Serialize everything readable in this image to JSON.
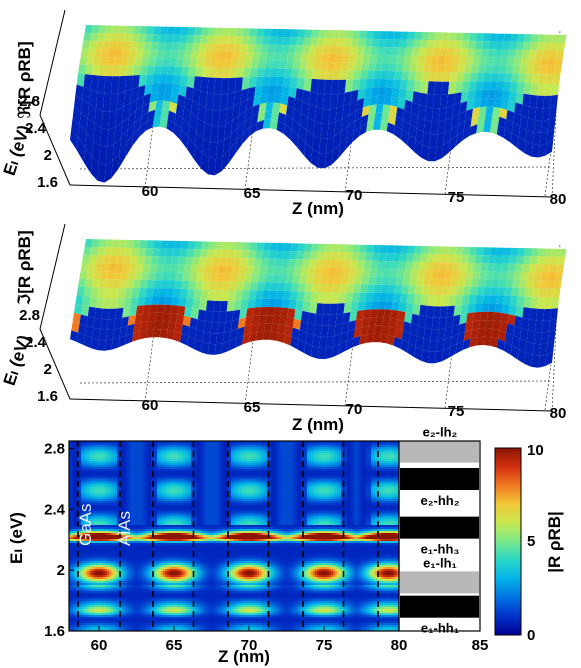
{
  "colors": {
    "colormap": [
      "#00008f",
      "#0030c8",
      "#0072e0",
      "#00b2e8",
      "#2ad6c8",
      "#78e88a",
      "#c8e850",
      "#f2c838",
      "#f07820",
      "#d23010",
      "#8a1500"
    ],
    "surface_top": "#22a060",
    "surface_trough": "#0a2b8c",
    "surface_peak": "#b53a10"
  },
  "chart_data": [
    {
      "type": "surface",
      "panel": "top",
      "zlabel": "ℜ[R ρRB]",
      "ylabel": "Eₗ (eV)",
      "xlabel": "Z (nm)",
      "x_ticks": [
        "60",
        "65",
        "70",
        "75",
        "80"
      ],
      "y_ticks": [
        "1.6",
        "2",
        "2.4",
        "2.8"
      ],
      "xlim": [
        58,
        80
      ],
      "ylim": [
        1.6,
        2.85
      ],
      "trough_centers_nm": [
        59.5,
        64.5,
        69.5,
        74.5,
        79.3
      ],
      "trough_depths": [
        1.0,
        0.85,
        0.7,
        0.55,
        0.45
      ]
    },
    {
      "type": "surface",
      "panel": "middle",
      "zlabel": "ℑ[R ρRB]",
      "ylabel": "Eₗ (eV)",
      "xlabel": "Z (nm)",
      "x_ticks": [
        "60",
        "65",
        "70",
        "75",
        "80"
      ],
      "y_ticks": [
        "1.6",
        "2",
        "2.4",
        "2.8"
      ],
      "xlim": [
        58,
        80
      ],
      "ylim": [
        1.6,
        2.85
      ],
      "trough_centers_nm": [
        59.5,
        64.5,
        69.5,
        74.5,
        79.3
      ],
      "trough_depths": [
        0.4,
        0.45,
        0.5,
        0.55,
        0.6
      ]
    },
    {
      "type": "heatmap",
      "panel": "bottom",
      "xlabel": "Z (nm)",
      "ylabel": "Eₗ (eV)",
      "colorbar_label": "|R ρRB|",
      "x_ticks": [
        "60",
        "65",
        "70",
        "75",
        "80",
        "85"
      ],
      "y_ticks": [
        "1.6",
        "2",
        "2.4",
        "2.8"
      ],
      "colorbar_ticks": [
        "0",
        "5",
        "10"
      ],
      "xlim": [
        58,
        85
      ],
      "ylim": [
        1.6,
        2.85
      ],
      "clim": [
        0,
        10
      ],
      "layer_labels": [
        "GaAs",
        "AlAs"
      ],
      "interface_z_nm": [
        58.6,
        61.4,
        63.6,
        66.3,
        68.6,
        71.3,
        73.6,
        76.3,
        78.6
      ],
      "well_centers_nm": [
        60.0,
        65.0,
        70.0,
        75.0,
        79.3
      ],
      "transitions": [
        {
          "label": "e₂-lh₂",
          "energy_ev": 2.78,
          "level": "grey"
        },
        {
          "label": "e₂-hh₂",
          "energy_ev": 2.6,
          "level": "black"
        },
        {
          "label": "e₁-hh₃",
          "energy_ev": 2.28,
          "level": "black"
        },
        {
          "label": "e₁-lh₁",
          "energy_ev": 1.92,
          "level": "grey"
        },
        {
          "label": "e₁-hh₁",
          "energy_ev": 1.76,
          "level": "black"
        }
      ]
    }
  ]
}
